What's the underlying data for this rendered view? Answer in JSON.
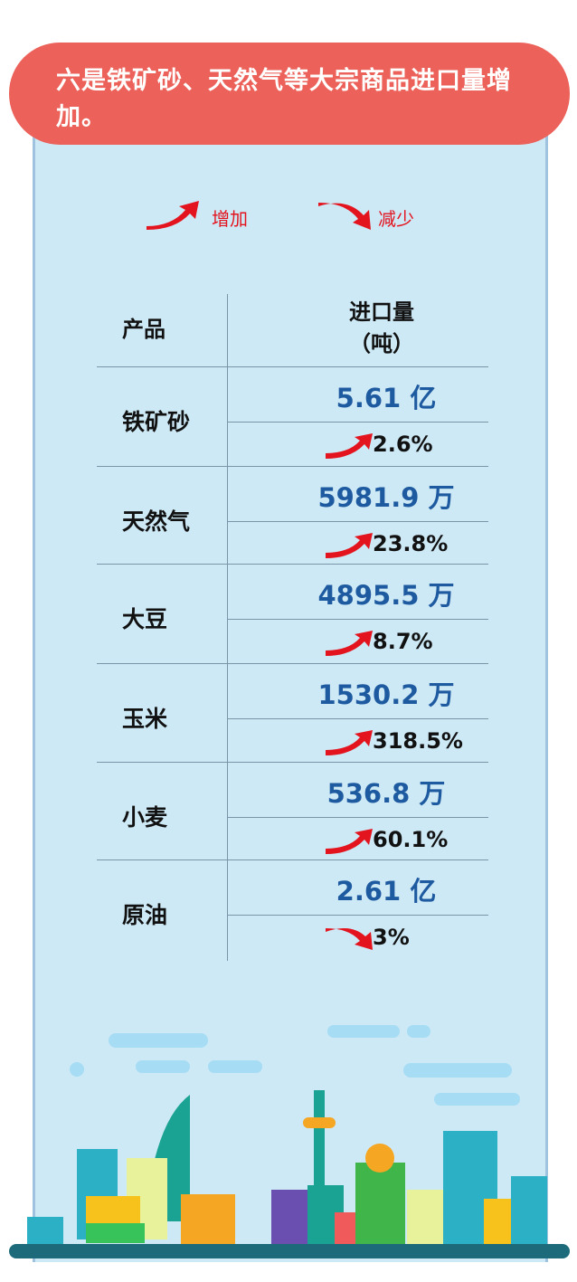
{
  "title": "六是铁矿砂、天然气等大宗商品进口量增加。",
  "legend": {
    "increase": "增加",
    "decrease": "减少"
  },
  "colors": {
    "header": "#ec625a",
    "panel": "#cde9f6",
    "value": "#1e5aa0",
    "arrow": "#e3141e"
  },
  "table": {
    "col_product": "产品",
    "col_volume": "进口量",
    "col_unit": "（吨）",
    "rows": [
      {
        "product": "铁矿砂",
        "volume": "5.61 亿",
        "change": "2.6%",
        "direction": "increase"
      },
      {
        "product": "天然气",
        "volume": "5981.9 万",
        "change": "23.8%",
        "direction": "increase"
      },
      {
        "product": "大豆",
        "volume": "4895.5 万",
        "change": "8.7%",
        "direction": "increase"
      },
      {
        "product": "玉米",
        "volume": "1530.2 万",
        "change": "318.5%",
        "direction": "increase"
      },
      {
        "product": "小麦",
        "volume": "536.8 万",
        "change": "60.1%",
        "direction": "increase"
      },
      {
        "product": "原油",
        "volume": "2.61 亿",
        "change": "3%",
        "direction": "decrease"
      }
    ]
  }
}
